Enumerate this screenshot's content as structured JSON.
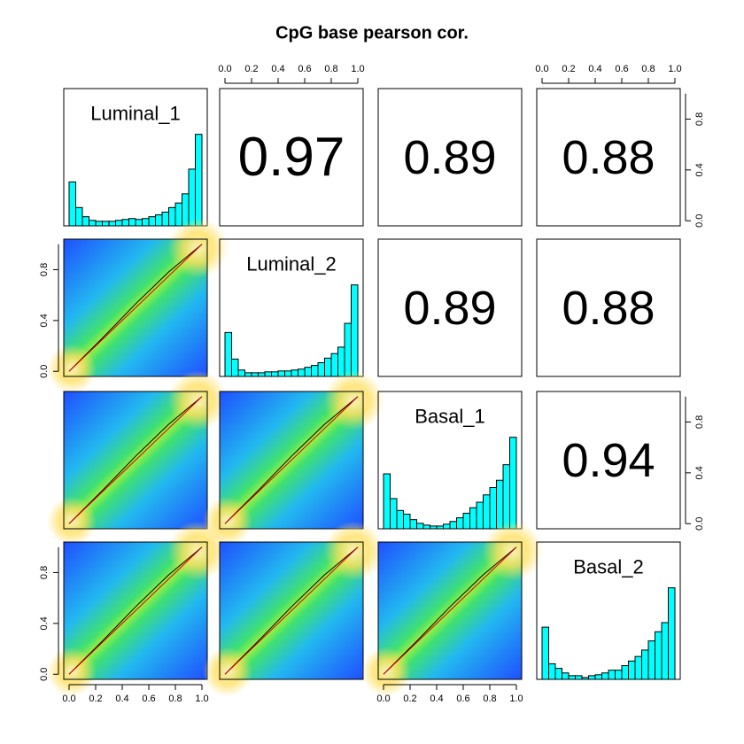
{
  "chart_data": {
    "type": "pairs",
    "title": "CpG base pearson cor.",
    "variables": [
      "Luminal_1",
      "Luminal_2",
      "Basal_1",
      "Basal_2"
    ],
    "upper": [
      [
        0.97,
        0.89,
        0.88
      ],
      [
        0.89,
        0.88
      ],
      [
        0.94
      ]
    ],
    "bins": [
      0,
      0.05,
      0.1,
      0.15,
      0.2,
      0.25,
      0.3,
      0.35,
      0.4,
      0.45,
      0.5,
      0.55,
      0.6,
      0.65,
      0.7,
      0.75,
      0.8,
      0.85,
      0.9,
      0.95,
      1
    ],
    "counts": [
      [
        48,
        20,
        10,
        6,
        5,
        5,
        5,
        6,
        7,
        8,
        7,
        8,
        10,
        12,
        15,
        20,
        25,
        35,
        62,
        100
      ],
      [
        48,
        19,
        7,
        4,
        4,
        4,
        5,
        5,
        6,
        6,
        7,
        8,
        10,
        12,
        15,
        20,
        25,
        32,
        58,
        100
      ],
      [
        60,
        33,
        20,
        16,
        10,
        6,
        4,
        3,
        3,
        5,
        8,
        12,
        17,
        23,
        29,
        37,
        45,
        53,
        70,
        100
      ],
      [
        57,
        17,
        12,
        7,
        4,
        4,
        2,
        4,
        5,
        7,
        10,
        10,
        15,
        20,
        25,
        32,
        42,
        52,
        62,
        100
      ]
    ],
    "hist_color": "#00ffff",
    "xlim": [
      -0.04,
      1.04
    ],
    "ylim": [
      -0.04,
      1.04
    ],
    "xticks": [
      {
        "value": 0,
        "label": "0.0"
      },
      {
        "value": 0.2,
        "label": "0.2"
      },
      {
        "value": 0.4,
        "label": "0.4"
      },
      {
        "value": 0.6,
        "label": "0.6"
      },
      {
        "value": 0.8,
        "label": "0.8"
      },
      {
        "value": 1,
        "label": "1.0"
      }
    ],
    "yticks": [
      {
        "value": 0,
        "label": "0.0"
      },
      {
        "value": 0.4,
        "label": "0.4"
      },
      {
        "value": 0.8,
        "label": "0.8"
      }
    ]
  }
}
